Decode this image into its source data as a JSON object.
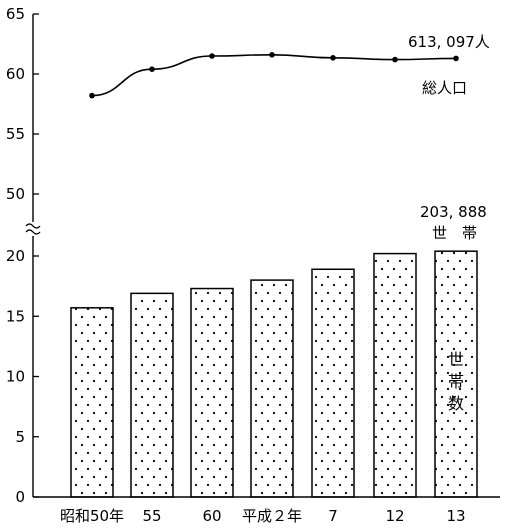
{
  "chart_data": {
    "type": "bar+line",
    "categories": [
      "昭和50年",
      "55",
      "60",
      "平成２年",
      "7",
      "12",
      "13"
    ],
    "y_axis": {
      "lower_ticks": [
        0,
        5,
        10,
        15,
        20
      ],
      "upper_ticks": [
        50,
        55,
        60,
        65
      ],
      "lower_range": [
        0,
        20
      ],
      "upper_range": [
        50,
        65
      ],
      "break_between": [
        20,
        50
      ]
    },
    "series": [
      {
        "name": "総人口",
        "kind": "line",
        "values": [
          58.2,
          60.4,
          61.5,
          61.6,
          61.35,
          61.2,
          61.3
        ],
        "end_label": "613, 097人"
      },
      {
        "name": "世帯数",
        "kind": "bar",
        "values": [
          15.7,
          16.9,
          17.3,
          18.0,
          18.9,
          20.2,
          20.4
        ],
        "end_label": "203, 888",
        "top_label": "世　帯",
        "inner_label": "世帯数"
      }
    ],
    "bar_pattern": "dotted",
    "grid": false,
    "legend": "none"
  }
}
